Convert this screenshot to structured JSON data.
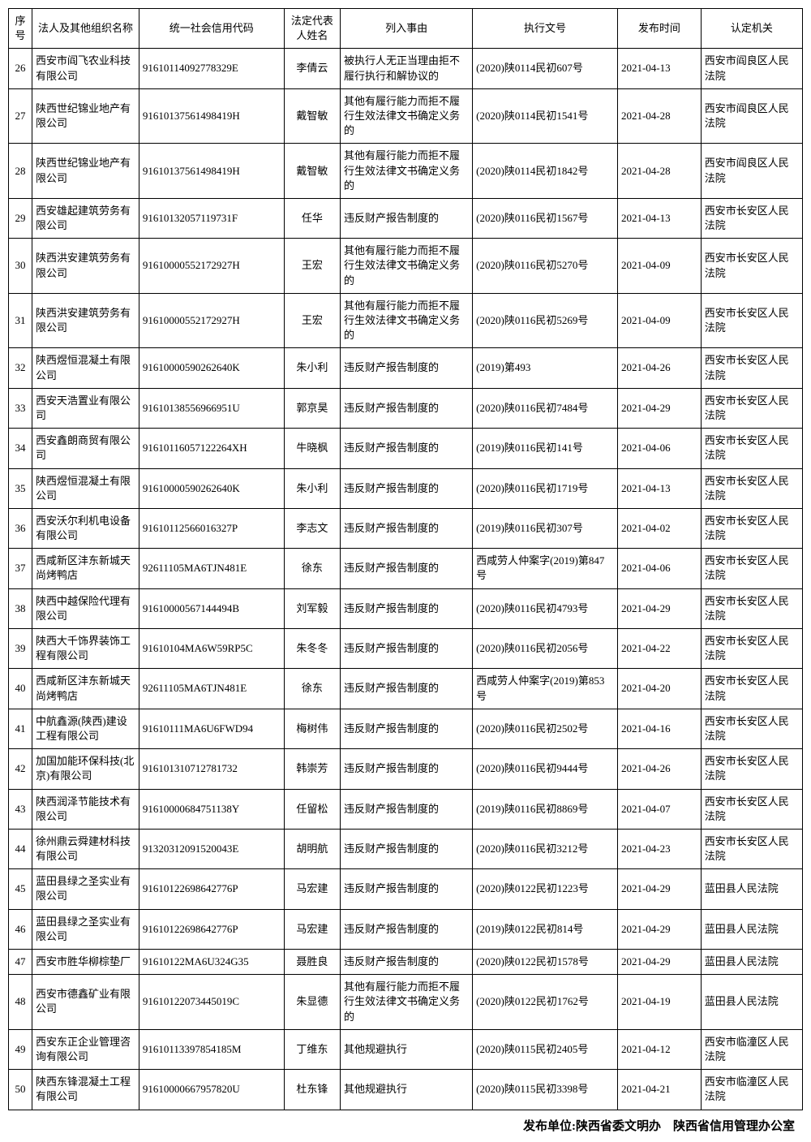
{
  "columns": {
    "seq": "序号",
    "name": "法人及其他组织名称",
    "code": "统一社会信用代码",
    "rep": "法定代表人姓名",
    "reason": "列入事由",
    "docno": "执行文号",
    "date": "发布时间",
    "org": "认定机关"
  },
  "rows": [
    {
      "seq": "26",
      "name": "西安市阎飞农业科技有限公司",
      "code": "91610114092778329E",
      "rep": "李倩云",
      "reason": "被执行人无正当理由拒不履行执行和解协议的",
      "docno": "(2020)陕0114民初607号",
      "date": "2021-04-13",
      "org": "西安市阎良区人民法院"
    },
    {
      "seq": "27",
      "name": "陕西世纪锦业地产有限公司",
      "code": "91610137561498419H",
      "rep": "戴智敏",
      "reason": "其他有履行能力而拒不履行生效法律文书确定义务的",
      "docno": "(2020)陕0114民初1541号",
      "date": "2021-04-28",
      "org": "西安市阎良区人民法院"
    },
    {
      "seq": "28",
      "name": "陕西世纪锦业地产有限公司",
      "code": "91610137561498419H",
      "rep": "戴智敏",
      "reason": "其他有履行能力而拒不履行生效法律文书确定义务的",
      "docno": "(2020)陕0114民初1842号",
      "date": "2021-04-28",
      "org": "西安市阎良区人民法院"
    },
    {
      "seq": "29",
      "name": "西安雄起建筑劳务有限公司",
      "code": "91610132057119731F",
      "rep": "任华",
      "reason": "违反财产报告制度的",
      "docno": "(2020)陕0116民初1567号",
      "date": "2021-04-13",
      "org": "西安市长安区人民法院"
    },
    {
      "seq": "30",
      "name": "陕西洪安建筑劳务有限公司",
      "code": "91610000552172927H",
      "rep": "王宏",
      "reason": "其他有履行能力而拒不履行生效法律文书确定义务的",
      "docno": "(2020)陕0116民初5270号",
      "date": "2021-04-09",
      "org": "西安市长安区人民法院"
    },
    {
      "seq": "31",
      "name": "陕西洪安建筑劳务有限公司",
      "code": "91610000552172927H",
      "rep": "王宏",
      "reason": "其他有履行能力而拒不履行生效法律文书确定义务的",
      "docno": "(2020)陕0116民初5269号",
      "date": "2021-04-09",
      "org": "西安市长安区人民法院"
    },
    {
      "seq": "32",
      "name": "陕西煜恒混凝土有限公司",
      "code": "91610000590262640K",
      "rep": "朱小利",
      "reason": "违反财产报告制度的",
      "docno": "(2019)第493",
      "date": "2021-04-26",
      "org": "西安市长安区人民法院"
    },
    {
      "seq": "33",
      "name": "西安天浩置业有限公司",
      "code": "91610138556966951U",
      "rep": "郭京昊",
      "reason": "违反财产报告制度的",
      "docno": "(2020)陕0116民初7484号",
      "date": "2021-04-29",
      "org": "西安市长安区人民法院"
    },
    {
      "seq": "34",
      "name": "西安鑫朗商贸有限公司",
      "code": "91610116057122264XH",
      "rep": "牛晓枫",
      "reason": "违反财产报告制度的",
      "docno": "(2019)陕0116民初141号",
      "date": "2021-04-06",
      "org": "西安市长安区人民法院"
    },
    {
      "seq": "35",
      "name": "陕西煜恒混凝土有限公司",
      "code": "91610000590262640K",
      "rep": "朱小利",
      "reason": "违反财产报告制度的",
      "docno": "(2020)陕0116民初1719号",
      "date": "2021-04-13",
      "org": "西安市长安区人民法院"
    },
    {
      "seq": "36",
      "name": "西安沃尔利机电设备有限公司",
      "code": "91610112566016327P",
      "rep": "李志文",
      "reason": "违反财产报告制度的",
      "docno": "(2019)陕0116民初307号",
      "date": "2021-04-02",
      "org": "西安市长安区人民法院"
    },
    {
      "seq": "37",
      "name": "西咸新区沣东新城天尚烤鸭店",
      "code": "92611105MA6TJN481E",
      "rep": "徐东",
      "reason": "违反财产报告制度的",
      "docno": "西咸劳人仲案字(2019)第847号",
      "date": "2021-04-06",
      "org": "西安市长安区人民法院"
    },
    {
      "seq": "38",
      "name": "陕西中越保险代理有限公司",
      "code": "91610000567144494B",
      "rep": "刘军毅",
      "reason": "违反财产报告制度的",
      "docno": "(2020)陕0116民初4793号",
      "date": "2021-04-29",
      "org": "西安市长安区人民法院"
    },
    {
      "seq": "39",
      "name": "陕西大千饰界装饰工程有限公司",
      "code": "91610104MA6W59RP5C",
      "rep": "朱冬冬",
      "reason": "违反财产报告制度的",
      "docno": "(2020)陕0116民初2056号",
      "date": "2021-04-22",
      "org": "西安市长安区人民法院"
    },
    {
      "seq": "40",
      "name": "西咸新区沣东新城天尚烤鸭店",
      "code": "92611105MA6TJN481E",
      "rep": "徐东",
      "reason": "违反财产报告制度的",
      "docno": "西咸劳人仲案字(2019)第853号",
      "date": "2021-04-20",
      "org": "西安市长安区人民法院"
    },
    {
      "seq": "41",
      "name": "中航鑫源(陕西)建设工程有限公司",
      "code": "91610111MA6U6FWD94",
      "rep": "梅树伟",
      "reason": "违反财产报告制度的",
      "docno": "(2020)陕0116民初2502号",
      "date": "2021-04-16",
      "org": "西安市长安区人民法院"
    },
    {
      "seq": "42",
      "name": "加国加能环保科技(北京)有限公司",
      "code": "916101310712781732",
      "rep": "韩崇芳",
      "reason": "违反财产报告制度的",
      "docno": "(2020)陕0116民初9444号",
      "date": "2021-04-26",
      "org": "西安市长安区人民法院"
    },
    {
      "seq": "43",
      "name": "陕西润泽节能技术有限公司",
      "code": "91610000684751138Y",
      "rep": "任留松",
      "reason": "违反财产报告制度的",
      "docno": "(2019)陕0116民初8869号",
      "date": "2021-04-07",
      "org": "西安市长安区人民法院"
    },
    {
      "seq": "44",
      "name": "徐州鼎云舜建材科技有限公司",
      "code": "91320312091520043E",
      "rep": "胡明航",
      "reason": "违反财产报告制度的",
      "docno": "(2020)陕0116民初3212号",
      "date": "2021-04-23",
      "org": "西安市长安区人民法院"
    },
    {
      "seq": "45",
      "name": "蓝田县绿之圣实业有限公司",
      "code": "91610122698642776P",
      "rep": "马宏建",
      "reason": "违反财产报告制度的",
      "docno": "(2020)陕0122民初1223号",
      "date": "2021-04-29",
      "org": "蓝田县人民法院"
    },
    {
      "seq": "46",
      "name": "蓝田县绿之圣实业有限公司",
      "code": "91610122698642776P",
      "rep": "马宏建",
      "reason": "违反财产报告制度的",
      "docno": "(2019)陕0122民初814号",
      "date": "2021-04-29",
      "org": "蓝田县人民法院"
    },
    {
      "seq": "47",
      "name": "西安市胜华柳棕垫厂",
      "code": "91610122MA6U324G35",
      "rep": "聂胜良",
      "reason": "违反财产报告制度的",
      "docno": "(2020)陕0122民初1578号",
      "date": "2021-04-29",
      "org": "蓝田县人民法院"
    },
    {
      "seq": "48",
      "name": "西安市德鑫矿业有限公司",
      "code": "91610122073445019C",
      "rep": "朱显德",
      "reason": "其他有履行能力而拒不履行生效法律文书确定义务的",
      "docno": "(2020)陕0122民初1762号",
      "date": "2021-04-19",
      "org": "蓝田县人民法院"
    },
    {
      "seq": "49",
      "name": "西安东正企业管理咨询有限公司",
      "code": "91610113397854185M",
      "rep": "丁维东",
      "reason": "其他规避执行",
      "docno": "(2020)陕0115民初2405号",
      "date": "2021-04-12",
      "org": "西安市临潼区人民法院"
    },
    {
      "seq": "50",
      "name": "陕西东锋混凝土工程有限公司",
      "code": "91610000667957820U",
      "rep": "杜东锋",
      "reason": "其他规避执行",
      "docno": "(2020)陕0115民初3398号",
      "date": "2021-04-21",
      "org": "西安市临潼区人民法院"
    }
  ],
  "footer": "发布单位:陕西省委文明办　陕西省信用管理办公室"
}
